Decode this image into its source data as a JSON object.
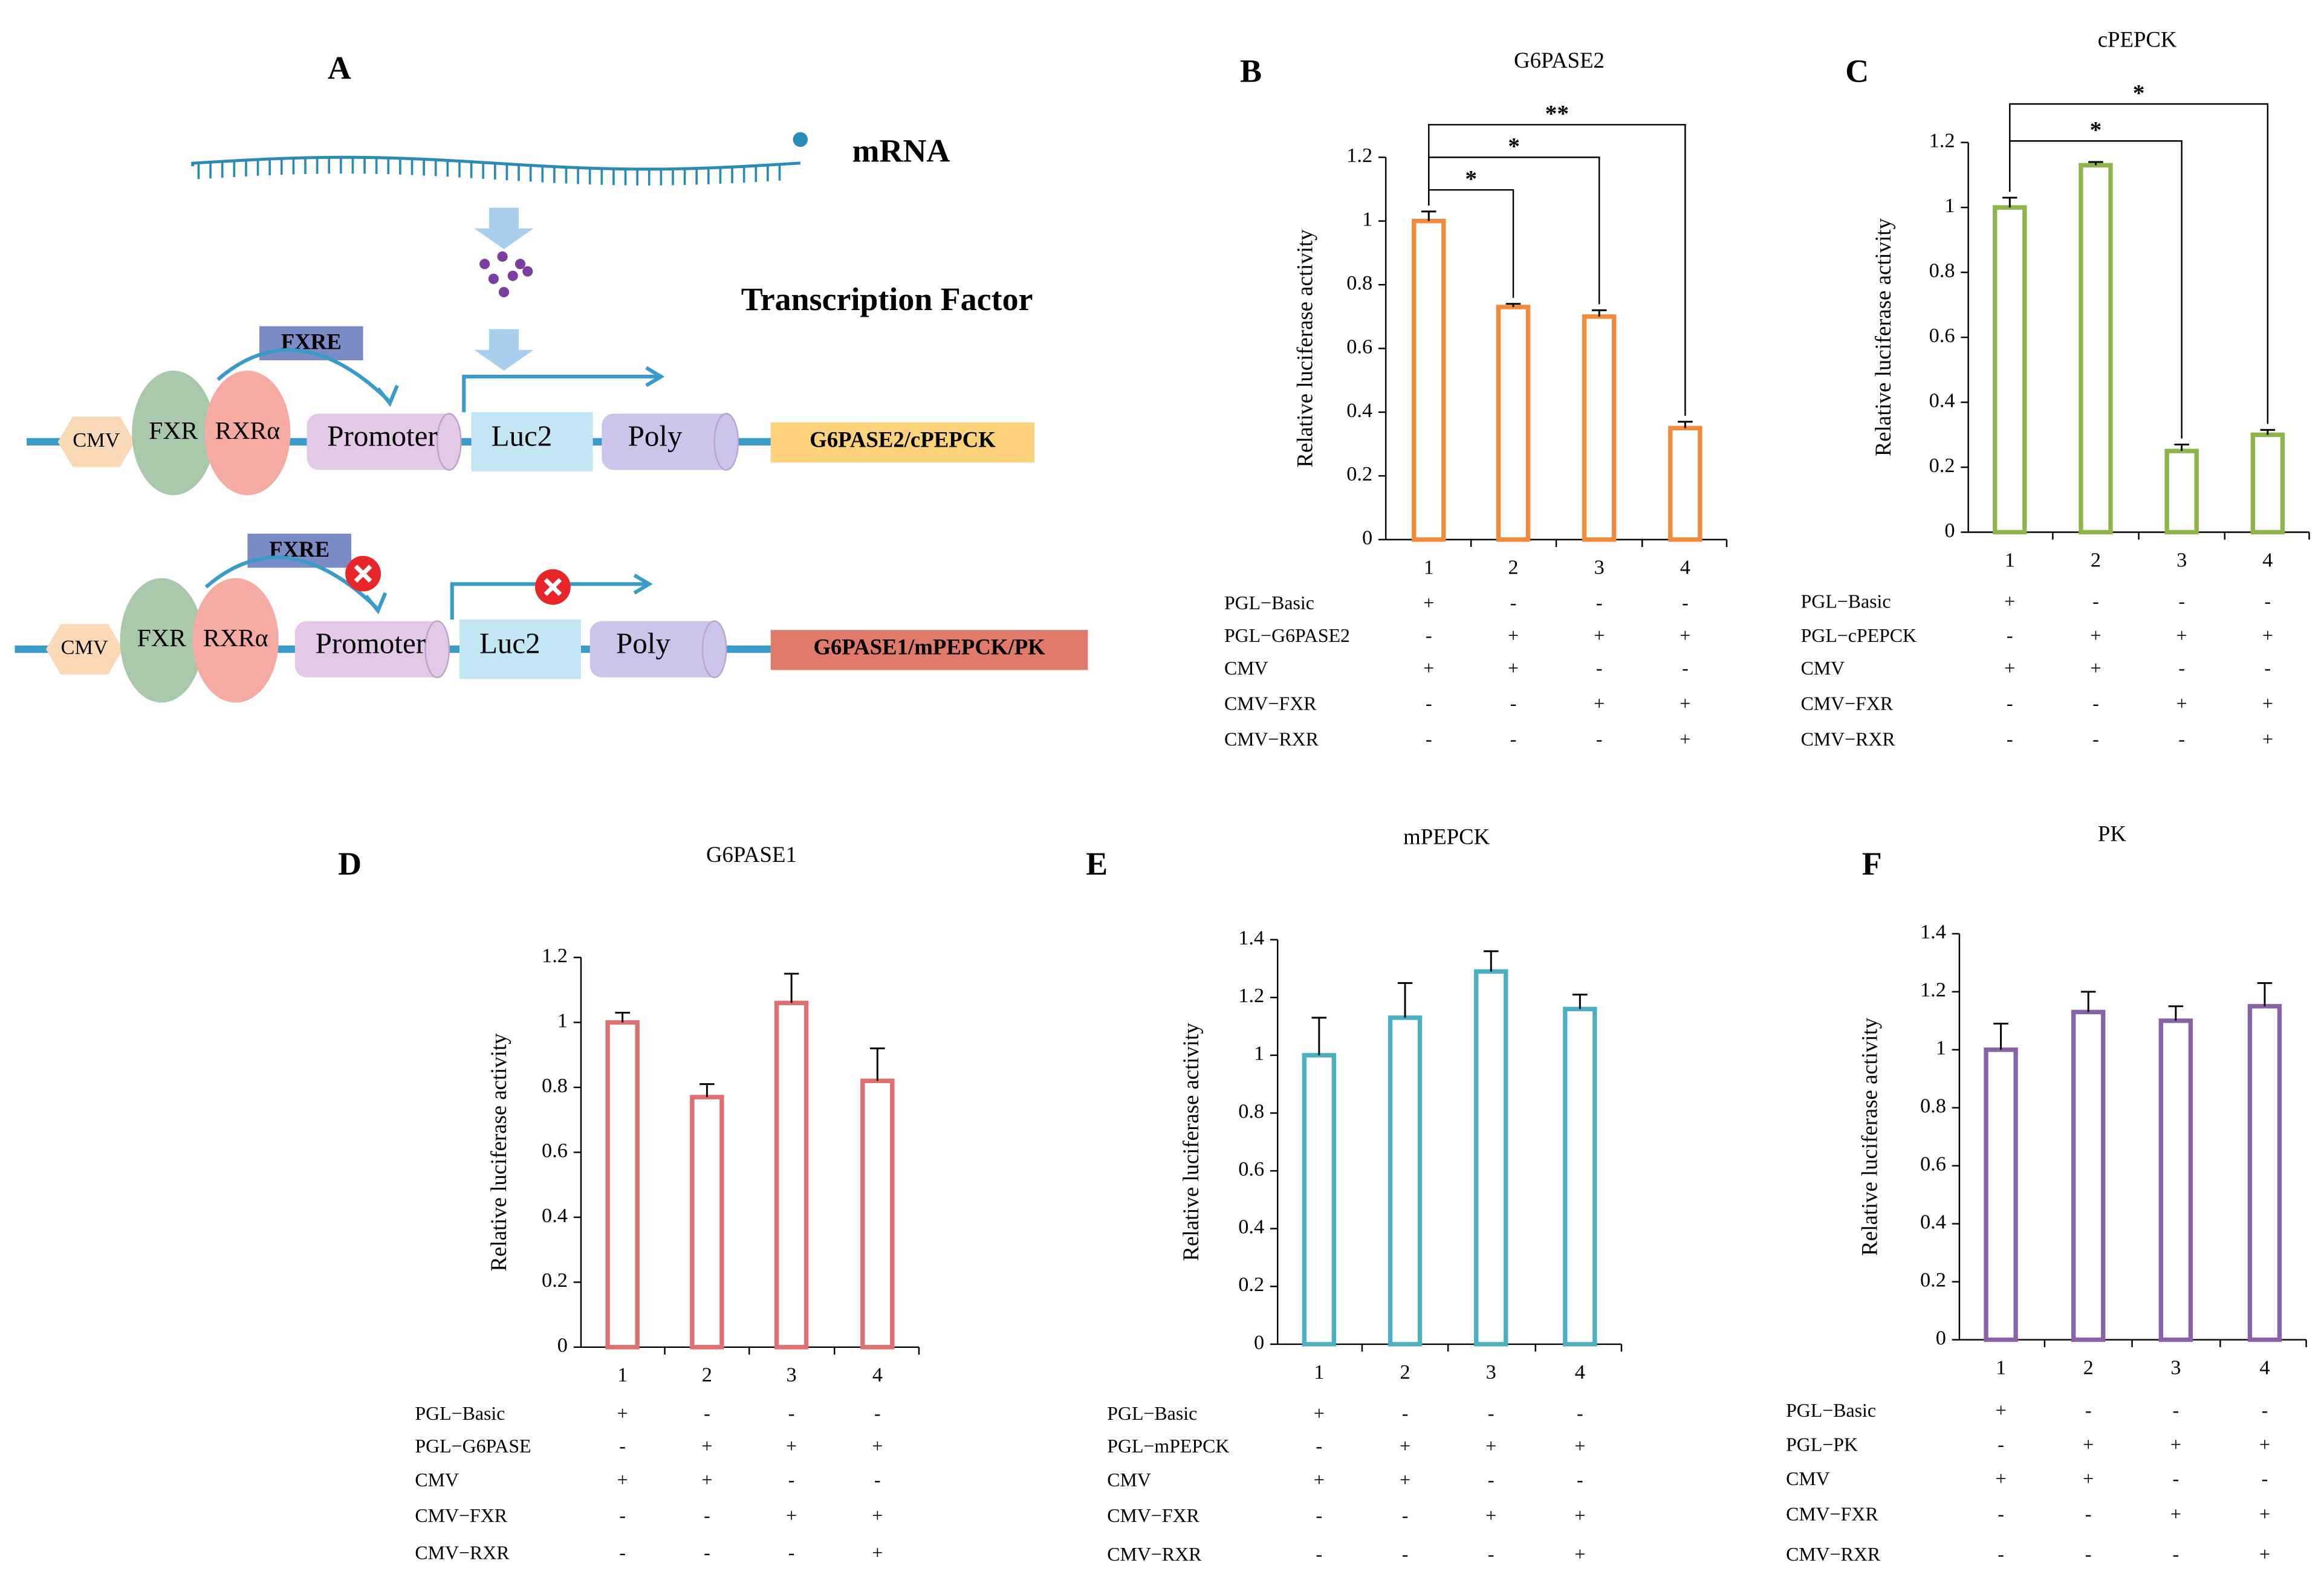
{
  "diagram": {
    "panel": "A",
    "mrna": "mRNA",
    "factor": "Transcription Factor",
    "constructs": [
      {
        "cmv": "CMV",
        "fxr": "FXR",
        "rxr": "RXRα",
        "fxre": "FXRE",
        "promoter": "Promoter",
        "luc": "Luc2",
        "poly": "Poly",
        "gene": "G6PASE2/cPEPCK"
      },
      {
        "cmv": "CMV",
        "fxr": "FXR",
        "rxr": "RXRα",
        "fxre": "FXRE",
        "promoter": "Promoter",
        "luc": "Luc2",
        "poly": "Poly",
        "gene": "G6PASE1/mPEPCK/PK"
      }
    ]
  },
  "chart_data": [
    {
      "type": "bar",
      "panel": "B",
      "title": "G6PASE2",
      "ylabel": "Relative luciferase activity",
      "color": "#f28a3a",
      "categories": [
        "1",
        "2",
        "3",
        "4"
      ],
      "values": [
        1,
        0.73,
        0.7,
        0.35
      ],
      "errors": [
        0.03,
        0.01,
        0.02,
        0.02
      ],
      "ylim": [
        0,
        1.2
      ],
      "yticks": [
        0,
        0.2,
        0.4,
        0.6,
        0.8,
        1,
        1.2
      ],
      "significance": [
        {
          "label": "*",
          "between": [
            "1",
            "2"
          ]
        },
        {
          "label": "*",
          "between": [
            "1",
            "3"
          ]
        },
        {
          "label": "**",
          "between": [
            "1",
            "4"
          ]
        }
      ],
      "conditions": [
        {
          "name": "PGL−Basic",
          "marks": [
            "+",
            "-",
            "-",
            "-"
          ]
        },
        {
          "name": "PGL−G6PASE2",
          "marks": [
            "-",
            "+",
            "+",
            "+"
          ]
        },
        {
          "name": "CMV",
          "marks": [
            "+",
            "+",
            "-",
            "-"
          ]
        },
        {
          "name": "CMV−FXR",
          "marks": [
            "-",
            "-",
            "+",
            "+"
          ]
        },
        {
          "name": "CMV−RXR",
          "marks": [
            "-",
            "-",
            "-",
            "+"
          ]
        }
      ]
    },
    {
      "type": "bar",
      "panel": "C",
      "title": "cPEPCK",
      "ylabel": "Relative luciferase activity",
      "color": "#8db54a",
      "categories": [
        "1",
        "2",
        "3",
        "4"
      ],
      "values": [
        1,
        1.13,
        0.25,
        0.3
      ],
      "errors": [
        0.03,
        0.01,
        0.02,
        0.015
      ],
      "ylim": [
        0,
        1.2
      ],
      "yticks": [
        0,
        0.2,
        0.4,
        0.6,
        0.8,
        1,
        1.2
      ],
      "significance": [
        {
          "label": "*",
          "between": [
            "1",
            "3"
          ]
        },
        {
          "label": "*",
          "between": [
            "1",
            "4"
          ]
        }
      ],
      "conditions": [
        {
          "name": "PGL−Basic",
          "marks": [
            "+",
            "-",
            "-",
            "-"
          ]
        },
        {
          "name": "PGL−cPEPCK",
          "marks": [
            "-",
            "+",
            "+",
            "+"
          ]
        },
        {
          "name": "CMV",
          "marks": [
            "+",
            "+",
            "-",
            "-"
          ]
        },
        {
          "name": "CMV−FXR",
          "marks": [
            "-",
            "-",
            "+",
            "+"
          ]
        },
        {
          "name": "CMV−RXR",
          "marks": [
            "-",
            "-",
            "-",
            "+"
          ]
        }
      ]
    },
    {
      "type": "bar",
      "panel": "D",
      "title": "G6PASE1",
      "ylabel": "Relative luciferase activity",
      "color": "#e07070",
      "categories": [
        "1",
        "2",
        "3",
        "4"
      ],
      "values": [
        1,
        0.77,
        1.06,
        0.82
      ],
      "errors": [
        0.03,
        0.04,
        0.09,
        0.1
      ],
      "ylim": [
        0,
        1.2
      ],
      "yticks": [
        0,
        0.2,
        0.4,
        0.6,
        0.8,
        1,
        1.2
      ],
      "conditions": [
        {
          "name": "PGL−Basic",
          "marks": [
            "+",
            "-",
            "-",
            "-"
          ]
        },
        {
          "name": "PGL−G6PASE",
          "marks": [
            "-",
            "+",
            "+",
            "+"
          ]
        },
        {
          "name": "CMV",
          "marks": [
            "+",
            "+",
            "-",
            "-"
          ]
        },
        {
          "name": "CMV−FXR",
          "marks": [
            "-",
            "-",
            "+",
            "+"
          ]
        },
        {
          "name": "CMV−RXR",
          "marks": [
            "-",
            "-",
            "-",
            "+"
          ]
        }
      ]
    },
    {
      "type": "bar",
      "panel": "E",
      "title": "mPEPCK",
      "ylabel": "Relative luciferase activity",
      "color": "#4bb0c0",
      "categories": [
        "1",
        "2",
        "3",
        "4"
      ],
      "values": [
        1,
        1.13,
        1.29,
        1.16
      ],
      "errors": [
        0.13,
        0.12,
        0.07,
        0.05
      ],
      "ylim": [
        0,
        1.4
      ],
      "yticks": [
        0,
        0.2,
        0.4,
        0.6,
        0.8,
        1,
        1.2,
        1.4
      ],
      "conditions": [
        {
          "name": "PGL−Basic",
          "marks": [
            "+",
            "-",
            "-",
            "-"
          ]
        },
        {
          "name": "PGL−mPEPCK",
          "marks": [
            "-",
            "+",
            "+",
            "+"
          ]
        },
        {
          "name": "CMV",
          "marks": [
            "+",
            "+",
            "-",
            "-"
          ]
        },
        {
          "name": "CMV−FXR",
          "marks": [
            "-",
            "-",
            "+",
            "+"
          ]
        },
        {
          "name": "CMV−RXR",
          "marks": [
            "-",
            "-",
            "-",
            "+"
          ]
        }
      ]
    },
    {
      "type": "bar",
      "panel": "F",
      "title": "PK",
      "ylabel": "Relative luciferase activity",
      "color": "#8a62a8",
      "categories": [
        "1",
        "2",
        "3",
        "4"
      ],
      "values": [
        1,
        1.13,
        1.1,
        1.15
      ],
      "errors": [
        0.09,
        0.07,
        0.05,
        0.08
      ],
      "ylim": [
        0,
        1.4
      ],
      "yticks": [
        0,
        0.2,
        0.4,
        0.6,
        0.8,
        1,
        1.2,
        1.4
      ],
      "conditions": [
        {
          "name": "PGL−Basic",
          "marks": [
            "+",
            "-",
            "-",
            "-"
          ]
        },
        {
          "name": "PGL−PK",
          "marks": [
            "-",
            "+",
            "+",
            "+"
          ]
        },
        {
          "name": "CMV",
          "marks": [
            "+",
            "+",
            "-",
            "-"
          ]
        },
        {
          "name": "CMV−FXR",
          "marks": [
            "-",
            "-",
            "+",
            "+"
          ]
        },
        {
          "name": "CMV−RXR",
          "marks": [
            "-",
            "-",
            "-",
            "+"
          ]
        }
      ]
    }
  ]
}
